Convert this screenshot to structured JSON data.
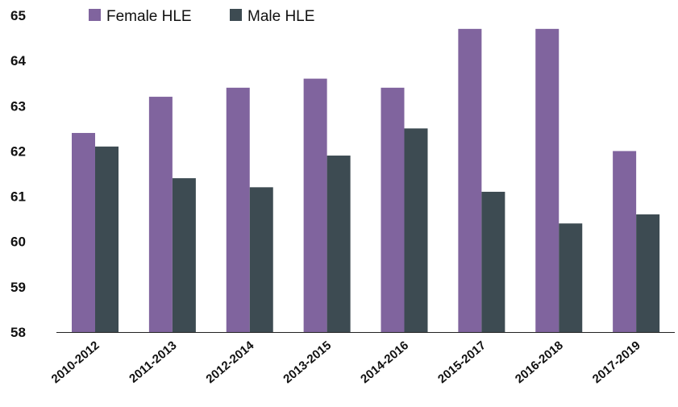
{
  "chart_data": {
    "type": "bar",
    "title": "",
    "xlabel": "",
    "ylabel": "",
    "categories": [
      "2010-2012",
      "2011-2013",
      "2012-2014",
      "2013-2015",
      "2014-2016",
      "2015-2017",
      "2016-2018",
      "2017-2019"
    ],
    "series": [
      {
        "name": "Female HLE",
        "color": "#80649e",
        "values": [
          62.4,
          63.2,
          63.4,
          63.6,
          63.4,
          64.7,
          64.7,
          62.0
        ]
      },
      {
        "name": "Male HLE",
        "color": "#3d4b52",
        "values": [
          62.1,
          61.4,
          61.2,
          61.9,
          62.5,
          61.1,
          60.4,
          60.6
        ]
      }
    ],
    "ylim": [
      58,
      65
    ],
    "yticks": [
      58,
      59,
      60,
      61,
      62,
      63,
      64,
      65
    ],
    "grid": false,
    "legend_position": "top-left"
  }
}
